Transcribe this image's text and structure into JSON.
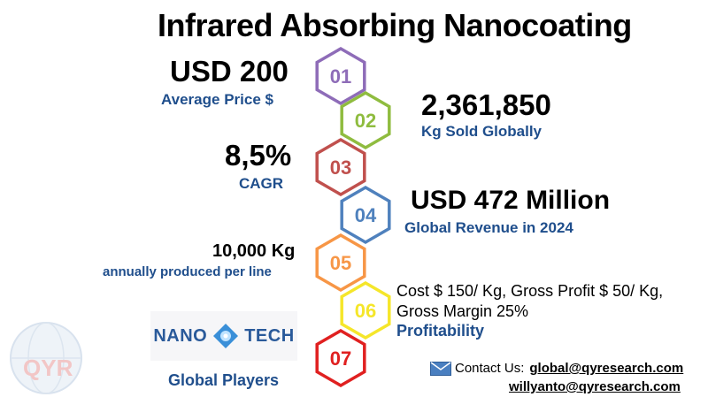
{
  "title": "Infrared Absorbing Nanocoating",
  "items": [
    {
      "num": "01",
      "value": "USD 200",
      "label": "Average Price $",
      "color": "#8e6cb8"
    },
    {
      "num": "02",
      "value": "2,361,850",
      "label": "Kg Sold Globally",
      "color": "#8fbc3f"
    },
    {
      "num": "03",
      "value": "8,5%",
      "label": "CAGR",
      "color": "#c0504d"
    },
    {
      "num": "04",
      "value": "USD 472 Million",
      "label": "Global Revenue in 2024",
      "color": "#4f81bd"
    },
    {
      "num": "05",
      "value": "10,000 Kg",
      "label": "annually produced per line",
      "color": "#f79646"
    },
    {
      "num": "06",
      "detail_line1": "Cost $ 150/ Kg, Gross Profit $ 50/ Kg,",
      "detail_line2": "Gross Margin 25%",
      "label": "Profitability",
      "color": "#f5e62a"
    },
    {
      "num": "07",
      "label": "Global Players",
      "color": "#e02020"
    }
  ],
  "logo": {
    "left": "NANO",
    "right": "TECH",
    "icon": "nano-tech-logo-icon"
  },
  "watermark": {
    "text": "QYR",
    "icon": "globe-icon"
  },
  "contact": {
    "label": "Contact Us:",
    "email1": "global@qyresearch.com",
    "email2": "willyanto@qyresearch.com",
    "icon": "envelope-icon"
  }
}
